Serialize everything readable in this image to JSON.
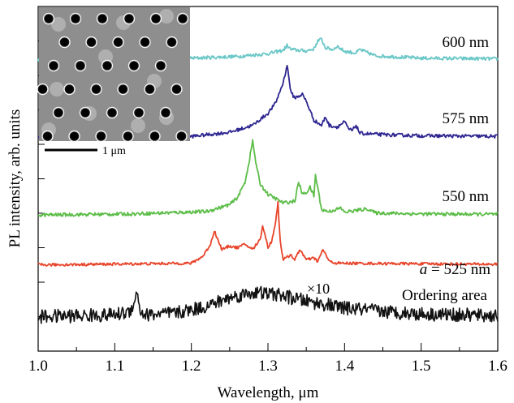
{
  "chart_data": {
    "type": "line",
    "xlabel": "Wavelength, μm",
    "ylabel": "PL intensity, arb. units",
    "xlim": [
      1.0,
      1.6
    ],
    "ylim": [
      0,
      10
    ],
    "x_ticks": [
      "1.0",
      "1.1",
      "1.2",
      "1.3",
      "1.4",
      "1.5",
      "1.6"
    ],
    "grid": false,
    "series": [
      {
        "name": "600 nm",
        "color": "#6cc7c7",
        "baseline": 8.45,
        "noise": 0.05,
        "label_prefix": "",
        "label_value": "600 nm",
        "points": [
          [
            1.0,
            0.0
          ],
          [
            1.2,
            0.05
          ],
          [
            1.26,
            0.1
          ],
          [
            1.3,
            0.18
          ],
          [
            1.32,
            0.28
          ],
          [
            1.325,
            0.42
          ],
          [
            1.33,
            0.3
          ],
          [
            1.35,
            0.26
          ],
          [
            1.36,
            0.32
          ],
          [
            1.365,
            0.55
          ],
          [
            1.37,
            0.6
          ],
          [
            1.375,
            0.35
          ],
          [
            1.385,
            0.3
          ],
          [
            1.39,
            0.4
          ],
          [
            1.4,
            0.25
          ],
          [
            1.415,
            0.2
          ],
          [
            1.42,
            0.3
          ],
          [
            1.44,
            0.12
          ],
          [
            1.5,
            0.05
          ],
          [
            1.6,
            0.03
          ]
        ]
      },
      {
        "name": "575 nm",
        "color": "#2e2690",
        "baseline": 6.2,
        "noise": 0.05,
        "label_prefix": "",
        "label_value": "575 nm",
        "points": [
          [
            1.0,
            0.0
          ],
          [
            1.2,
            0.03
          ],
          [
            1.25,
            0.15
          ],
          [
            1.28,
            0.35
          ],
          [
            1.3,
            0.7
          ],
          [
            1.31,
            1.0
          ],
          [
            1.32,
            1.6
          ],
          [
            1.325,
            2.1
          ],
          [
            1.33,
            1.3
          ],
          [
            1.335,
            1.15
          ],
          [
            1.345,
            1.25
          ],
          [
            1.35,
            1.05
          ],
          [
            1.36,
            0.5
          ],
          [
            1.37,
            0.35
          ],
          [
            1.375,
            0.6
          ],
          [
            1.38,
            0.35
          ],
          [
            1.39,
            0.3
          ],
          [
            1.4,
            0.45
          ],
          [
            1.405,
            0.25
          ],
          [
            1.41,
            0.2
          ],
          [
            1.415,
            0.35
          ],
          [
            1.42,
            0.12
          ],
          [
            1.45,
            0.08
          ],
          [
            1.5,
            0.05
          ],
          [
            1.6,
            0.03
          ]
        ]
      },
      {
        "name": "550 nm",
        "color": "#5cbd48",
        "baseline": 3.95,
        "noise": 0.05,
        "label_prefix": "",
        "label_value": "550 nm",
        "points": [
          [
            1.0,
            0.0
          ],
          [
            1.12,
            0.03
          ],
          [
            1.22,
            0.1
          ],
          [
            1.25,
            0.3
          ],
          [
            1.26,
            0.5
          ],
          [
            1.27,
            0.95
          ],
          [
            1.275,
            1.5
          ],
          [
            1.28,
            2.15
          ],
          [
            1.285,
            1.4
          ],
          [
            1.29,
            0.9
          ],
          [
            1.3,
            0.6
          ],
          [
            1.32,
            0.35
          ],
          [
            1.335,
            0.4
          ],
          [
            1.34,
            0.95
          ],
          [
            1.345,
            0.6
          ],
          [
            1.35,
            0.65
          ],
          [
            1.355,
            0.8
          ],
          [
            1.36,
            0.55
          ],
          [
            1.362,
            1.15
          ],
          [
            1.365,
            0.8
          ],
          [
            1.37,
            0.15
          ],
          [
            1.38,
            0.1
          ],
          [
            1.395,
            0.2
          ],
          [
            1.4,
            0.08
          ],
          [
            1.43,
            0.18
          ],
          [
            1.44,
            0.06
          ],
          [
            1.5,
            0.03
          ],
          [
            1.6,
            0.02
          ]
        ]
      },
      {
        "name": "a = 525 nm",
        "color": "#e8442a",
        "baseline": 2.5,
        "noise": 0.04,
        "label_prefix": "a",
        "label_value": " = 525 nm",
        "points": [
          [
            1.0,
            0.0
          ],
          [
            1.2,
            0.05
          ],
          [
            1.215,
            0.25
          ],
          [
            1.225,
            0.6
          ],
          [
            1.23,
            1.0
          ],
          [
            1.235,
            0.7
          ],
          [
            1.24,
            0.45
          ],
          [
            1.25,
            0.55
          ],
          [
            1.26,
            0.5
          ],
          [
            1.27,
            0.6
          ],
          [
            1.28,
            0.45
          ],
          [
            1.29,
            0.75
          ],
          [
            1.293,
            1.15
          ],
          [
            1.297,
            0.8
          ],
          [
            1.3,
            0.5
          ],
          [
            1.305,
            0.7
          ],
          [
            1.31,
            1.25
          ],
          [
            1.313,
            1.8
          ],
          [
            1.316,
            0.7
          ],
          [
            1.32,
            0.15
          ],
          [
            1.33,
            0.3
          ],
          [
            1.335,
            0.15
          ],
          [
            1.342,
            0.45
          ],
          [
            1.35,
            0.15
          ],
          [
            1.36,
            0.2
          ],
          [
            1.365,
            0.1
          ],
          [
            1.372,
            0.45
          ],
          [
            1.38,
            0.1
          ],
          [
            1.39,
            0.05
          ],
          [
            1.6,
            0.02
          ]
        ]
      },
      {
        "name": "Ordering area",
        "color": "#111111",
        "baseline": 1.0,
        "noise": 0.2,
        "label_prefix": "",
        "label_value": "Ordering area",
        "points": [
          [
            1.0,
            0.0
          ],
          [
            1.1,
            0.05
          ],
          [
            1.12,
            0.15
          ],
          [
            1.125,
            0.45
          ],
          [
            1.13,
            0.7
          ],
          [
            1.133,
            0.15
          ],
          [
            1.14,
            0.05
          ],
          [
            1.18,
            0.1
          ],
          [
            1.22,
            0.3
          ],
          [
            1.25,
            0.55
          ],
          [
            1.28,
            0.7
          ],
          [
            1.31,
            0.65
          ],
          [
            1.35,
            0.45
          ],
          [
            1.4,
            0.25
          ],
          [
            1.45,
            0.15
          ],
          [
            1.5,
            0.08
          ],
          [
            1.6,
            0.02
          ]
        ]
      }
    ],
    "annotations": [
      "×10"
    ],
    "inset": {
      "scale_bar_label": "1 μm"
    }
  }
}
